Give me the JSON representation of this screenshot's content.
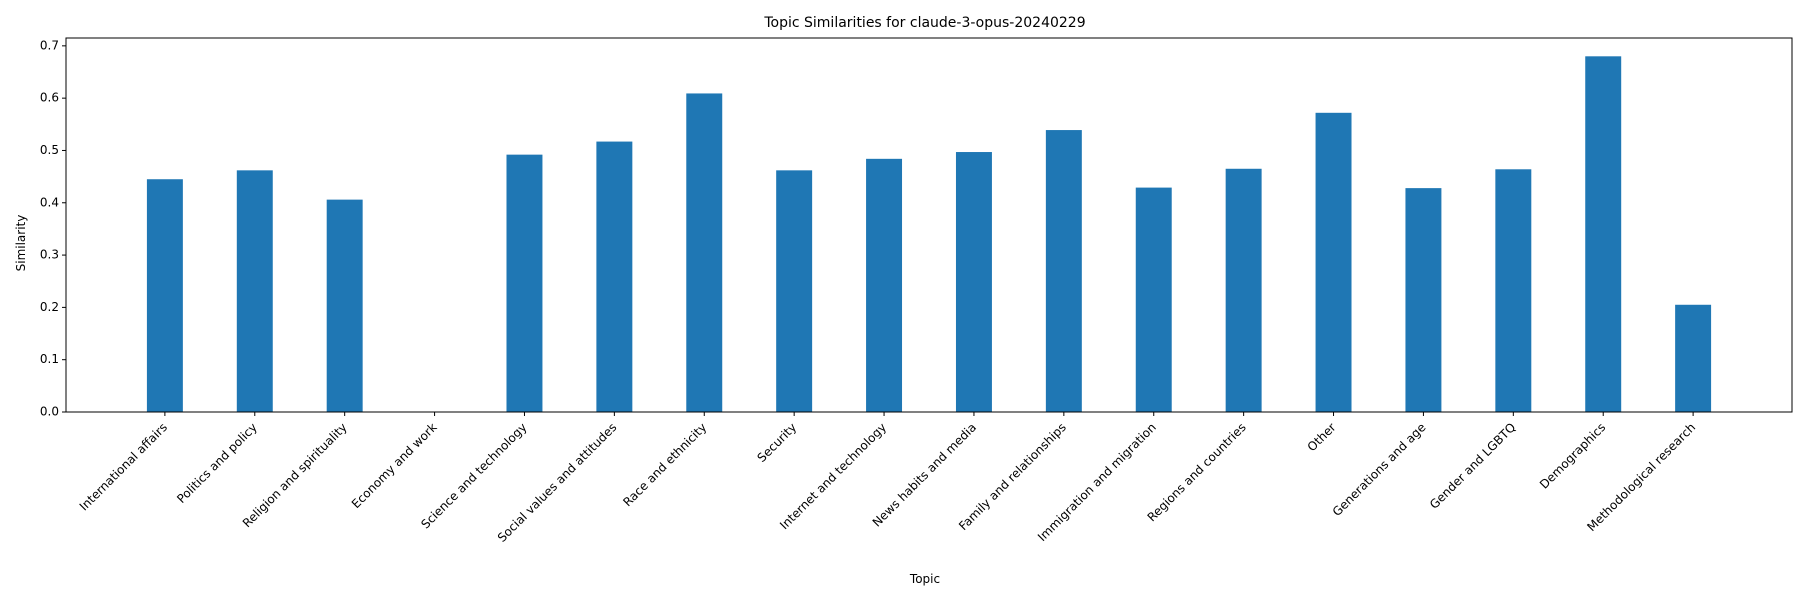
{
  "chart_data": {
    "type": "bar",
    "title": "Topic Similarities for claude-3-opus-20240229",
    "xlabel": "Topic",
    "ylabel": "Similarity",
    "ylim": [
      0,
      0.715
    ],
    "yticks": [
      "0.0",
      "0.1",
      "0.2",
      "0.3",
      "0.4",
      "0.5",
      "0.6",
      "0.7"
    ],
    "grid": false,
    "legend": "none",
    "bar_color": "#1f77b4",
    "categories": [
      "International affairs",
      "Politics and policy",
      "Religion and spirituality",
      "Economy and work",
      "Science and technology",
      "Social values and attitudes",
      "Race and ethnicity",
      "Security",
      "Internet and technology",
      "News habits and media",
      "Family and relationships",
      "Immigration and migration",
      "Regions and countries",
      "Other",
      "Generations and age",
      "Gender and LGBTQ",
      "Demographics",
      "Methodological research"
    ],
    "values": [
      0.445,
      0.462,
      0.406,
      0.0,
      0.492,
      0.517,
      0.609,
      0.462,
      0.484,
      0.497,
      0.539,
      0.429,
      0.465,
      0.572,
      0.428,
      0.464,
      0.68,
      0.205
    ]
  }
}
